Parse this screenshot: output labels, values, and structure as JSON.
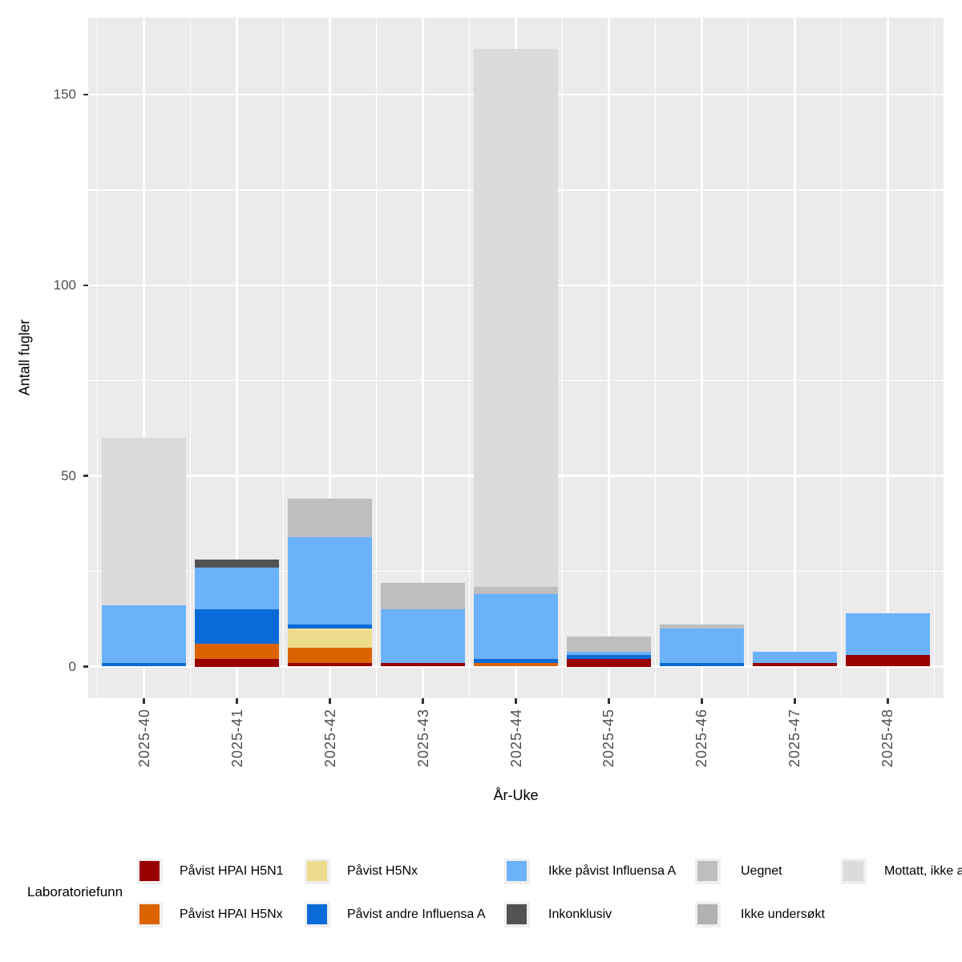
{
  "chart_data": {
    "type": "bar",
    "stacked": true,
    "title": "",
    "xlabel": "År-Uke",
    "ylabel": "Antall fugler",
    "legend_title": "Laboratoriefunn",
    "legend_position": "bottom",
    "grid": true,
    "panel_background": "#EBEBEB",
    "gridline_color": "#FFFFFF",
    "tick_color": "#333333",
    "tick_label_color": "#4D4D4D",
    "categories": [
      "2025-40",
      "2025-41",
      "2025-42",
      "2025-43",
      "2025-44",
      "2025-45",
      "2025-46",
      "2025-47",
      "2025-48"
    ],
    "y_ticks": [
      0,
      50,
      100,
      150
    ],
    "y_minor_ticks": [
      25,
      75,
      125
    ],
    "ylim": [
      -8.5,
      170.5
    ],
    "series": [
      {
        "name": "Påvist HPAI H5N1",
        "color": "#990000",
        "values": [
          0,
          2,
          1,
          1,
          0,
          2,
          0,
          1,
          3
        ]
      },
      {
        "name": "Påvist HPAI H5Nx",
        "color": "#DC6400",
        "values": [
          0,
          4,
          4,
          0,
          1,
          0,
          0,
          0,
          0
        ]
      },
      {
        "name": "Påvist H5Nx",
        "color": "#EDDC8C",
        "values": [
          0,
          0,
          5,
          0,
          0,
          0,
          0,
          0,
          0
        ]
      },
      {
        "name": "Påvist andre Influensa A",
        "color": "#0A6BD8",
        "values": [
          1,
          9,
          1,
          0,
          1,
          1,
          1,
          0,
          0
        ]
      },
      {
        "name": "Ikke påvist Influensa A",
        "color": "#6BB2FB",
        "values": [
          15,
          11,
          23,
          14,
          17,
          1,
          9,
          3,
          11
        ]
      },
      {
        "name": "Inkonklusiv",
        "color": "#525252",
        "values": [
          0,
          2,
          0,
          0,
          0,
          0,
          0,
          0,
          0
        ]
      },
      {
        "name": "Uegnet",
        "color": "#BEBEBE",
        "values": [
          0,
          0,
          10,
          7,
          2,
          4,
          1,
          0,
          0
        ]
      },
      {
        "name": "Ikke undersøkt",
        "color": "#B1B1B1",
        "values": [
          0,
          0,
          0,
          0,
          0,
          0,
          0,
          0,
          0
        ]
      },
      {
        "name": "Mottatt, ikke a",
        "color": "#DBDBDB",
        "values": [
          44,
          0,
          0,
          0,
          141,
          0,
          0,
          0,
          0
        ]
      }
    ],
    "totals": [
      60,
      28,
      44,
      22,
      162,
      8,
      11,
      4,
      14
    ]
  }
}
